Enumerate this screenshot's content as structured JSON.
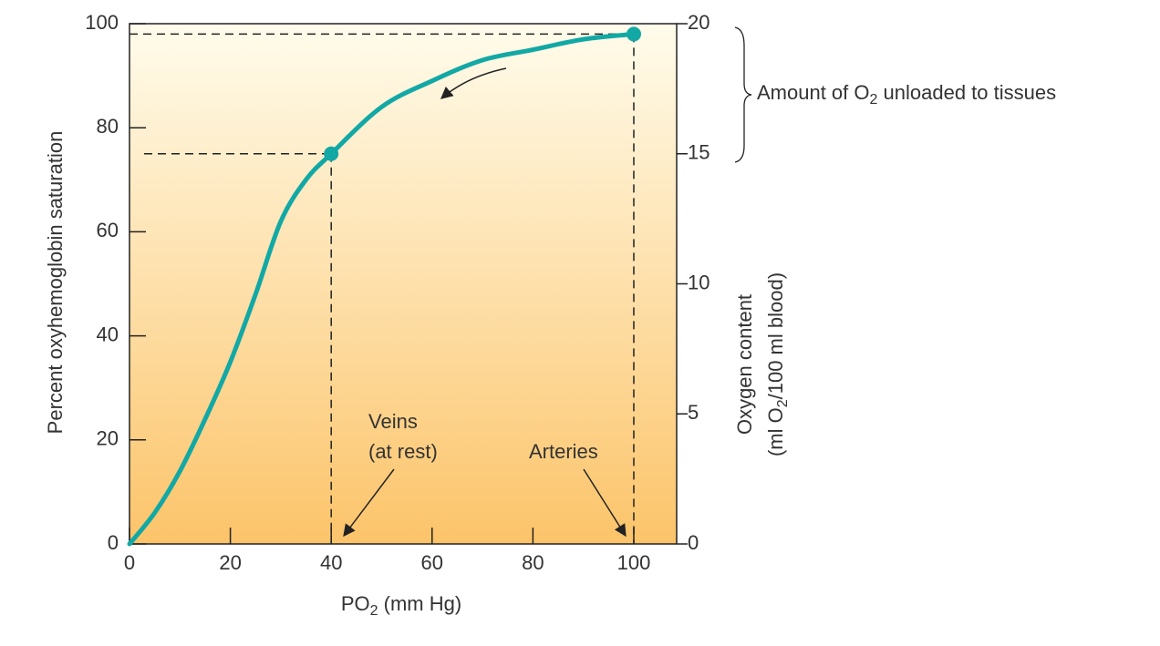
{
  "chart_data": {
    "type": "line",
    "x_label": [
      "PO",
      "2",
      " (mm Hg)"
    ],
    "y_label": "Percent oxyhemoglobin saturation",
    "y2_label": [
      [
        "Oxygen content"
      ],
      [
        "(ml O",
        "2",
        "/100 ml blood)"
      ]
    ],
    "x": [
      0,
      5,
      10,
      15,
      20,
      25,
      30,
      35,
      40,
      50,
      60,
      70,
      80,
      90,
      100
    ],
    "series": [
      {
        "color": "#12a8a5",
        "values": [
          0,
          6,
          14,
          24,
          35,
          48,
          62,
          70,
          75,
          84,
          89,
          93,
          95,
          97,
          98
        ]
      }
    ],
    "points": {
      "x": [
        40,
        100
      ],
      "values": [
        75,
        98
      ],
      "color": "#12a8a5"
    },
    "xlim": [
      0,
      108.5
    ],
    "ylim": [
      0,
      100
    ],
    "y2lim": [
      0,
      20
    ],
    "xticks": [
      0,
      20,
      40,
      60,
      80,
      100
    ],
    "yticks": [
      0,
      20,
      40,
      60,
      80,
      100
    ],
    "y2ticks": [
      0,
      5,
      10,
      15,
      20
    ],
    "annotations": {
      "veins": [
        "Veins",
        "(at rest)"
      ],
      "arteries": "Arteries",
      "unloaded": [
        "Amount of O",
        "2",
        " unloaded to tissues"
      ]
    }
  }
}
